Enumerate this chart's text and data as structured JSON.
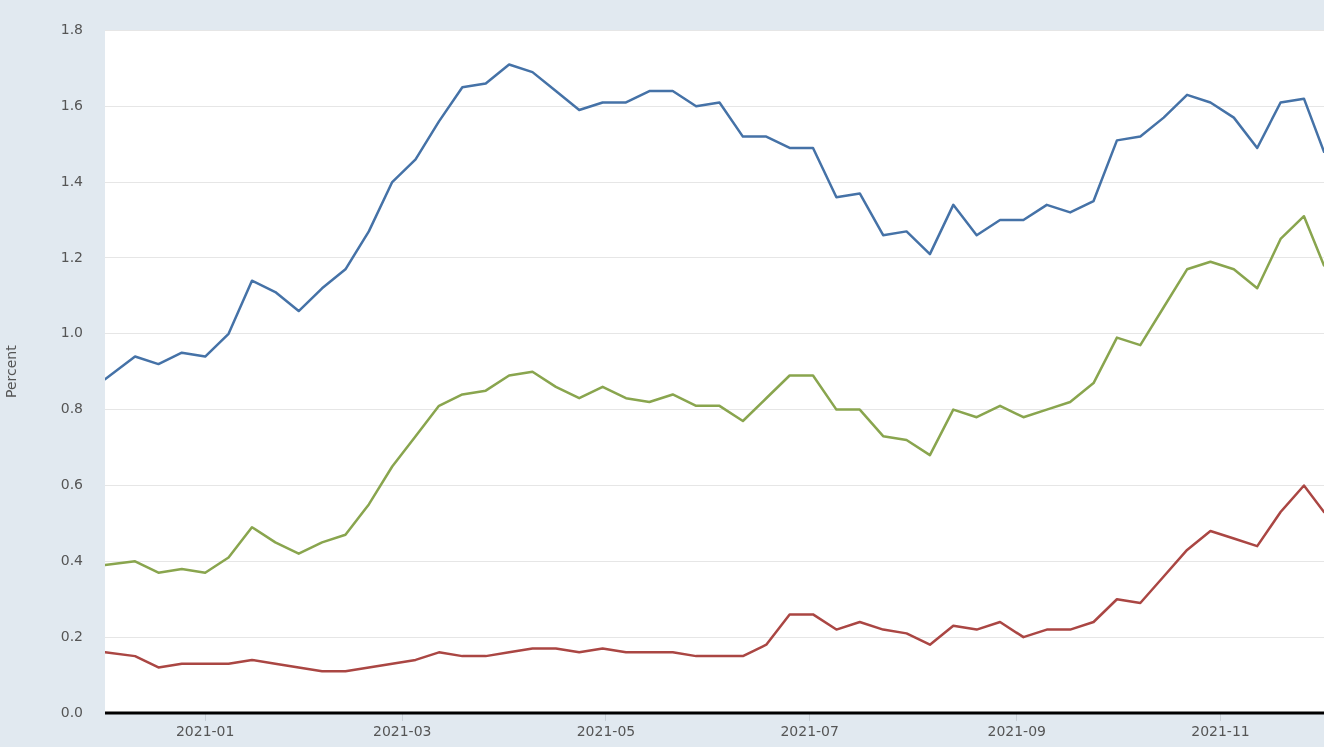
{
  "chart_data": {
    "type": "line",
    "ylabel": "Percent",
    "x": [
      "2020-12-02",
      "2020-12-11",
      "2020-12-18",
      "2020-12-25",
      "2021-01-01",
      "2021-01-08",
      "2021-01-15",
      "2021-01-22",
      "2021-01-29",
      "2021-02-05",
      "2021-02-12",
      "2021-02-19",
      "2021-02-26",
      "2021-03-05",
      "2021-03-12",
      "2021-03-19",
      "2021-03-26",
      "2021-04-02",
      "2021-04-09",
      "2021-04-16",
      "2021-04-23",
      "2021-04-30",
      "2021-05-07",
      "2021-05-14",
      "2021-05-21",
      "2021-05-28",
      "2021-06-04",
      "2021-06-11",
      "2021-06-18",
      "2021-06-25",
      "2021-07-02",
      "2021-07-09",
      "2021-07-16",
      "2021-07-23",
      "2021-07-30",
      "2021-08-06",
      "2021-08-13",
      "2021-08-20",
      "2021-08-27",
      "2021-09-03",
      "2021-09-10",
      "2021-09-17",
      "2021-09-24",
      "2021-10-01",
      "2021-10-08",
      "2021-10-15",
      "2021-10-22",
      "2021-10-29",
      "2021-11-05",
      "2021-11-12",
      "2021-11-19",
      "2021-11-26",
      "2021-12-02"
    ],
    "series": [
      {
        "color": "#4572a7",
        "values": [
          0.88,
          0.94,
          0.92,
          0.95,
          0.94,
          1.0,
          1.14,
          1.11,
          1.06,
          1.12,
          1.17,
          1.27,
          1.4,
          1.46,
          1.56,
          1.65,
          1.66,
          1.71,
          1.69,
          1.64,
          1.59,
          1.61,
          1.61,
          1.64,
          1.64,
          1.6,
          1.61,
          1.52,
          1.52,
          1.49,
          1.49,
          1.36,
          1.37,
          1.26,
          1.27,
          1.21,
          1.34,
          1.26,
          1.3,
          1.3,
          1.34,
          1.32,
          1.35,
          1.51,
          1.52,
          1.57,
          1.63,
          1.61,
          1.57,
          1.49,
          1.61,
          1.62,
          1.48
        ]
      },
      {
        "color": "#89a54e",
        "values": [
          0.39,
          0.4,
          0.37,
          0.38,
          0.37,
          0.41,
          0.49,
          0.45,
          0.42,
          0.45,
          0.47,
          0.55,
          0.65,
          0.73,
          0.81,
          0.84,
          0.85,
          0.89,
          0.9,
          0.86,
          0.83,
          0.86,
          0.83,
          0.82,
          0.84,
          0.81,
          0.81,
          0.77,
          0.83,
          0.89,
          0.89,
          0.8,
          0.8,
          0.73,
          0.72,
          0.68,
          0.8,
          0.78,
          0.81,
          0.78,
          0.8,
          0.82,
          0.87,
          0.99,
          0.97,
          1.07,
          1.17,
          1.19,
          1.17,
          1.12,
          1.25,
          1.31,
          1.18
        ]
      },
      {
        "color": "#aa4643",
        "values": [
          0.16,
          0.15,
          0.12,
          0.13,
          0.13,
          0.13,
          0.14,
          0.13,
          0.12,
          0.11,
          0.11,
          0.12,
          0.13,
          0.14,
          0.16,
          0.15,
          0.15,
          0.16,
          0.17,
          0.17,
          0.16,
          0.17,
          0.16,
          0.16,
          0.16,
          0.15,
          0.15,
          0.15,
          0.18,
          0.26,
          0.26,
          0.22,
          0.24,
          0.22,
          0.21,
          0.18,
          0.23,
          0.22,
          0.24,
          0.2,
          0.22,
          0.22,
          0.24,
          0.3,
          0.29,
          0.36,
          0.43,
          0.48,
          0.46,
          0.44,
          0.53,
          0.6,
          0.53
        ]
      }
    ],
    "xlim": [
      "2020-12-02",
      "2021-12-02"
    ],
    "xticks": [
      "2021-01",
      "2021-03",
      "2021-05",
      "2021-07",
      "2021-09",
      "2021-11"
    ],
    "ylim": [
      0,
      1.8
    ],
    "yticks": [
      {
        "value": 0,
        "label": "0.0"
      },
      {
        "value": 0.2,
        "label": "0.2"
      },
      {
        "value": 0.4,
        "label": "0.4"
      },
      {
        "value": 0.6,
        "label": "0.6"
      },
      {
        "value": 0.8,
        "label": "0.8"
      },
      {
        "value": 1,
        "label": "1.0"
      },
      {
        "value": 1.2,
        "label": "1.2"
      },
      {
        "value": 1.4,
        "label": "1.4"
      },
      {
        "value": 1.6,
        "label": "1.6"
      },
      {
        "value": 1.8,
        "label": "1.8"
      }
    ],
    "grid": "y",
    "legend": false,
    "marker": "none",
    "line_style": "solid"
  }
}
